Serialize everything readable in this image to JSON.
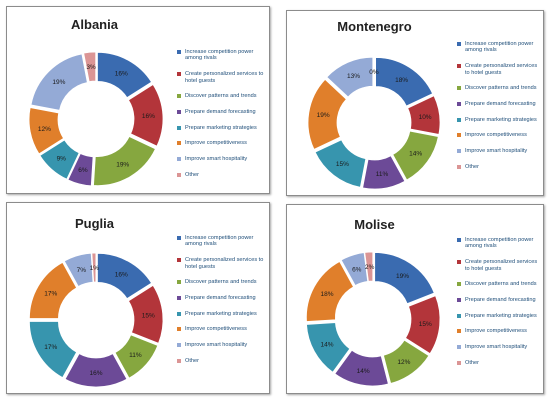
{
  "legend_labels": [
    "Increase competition power among rivals",
    "Create personalized services to hotel guests",
    "Discover patterns and trends",
    "Prepare demand forecasting",
    "Prepare marketing strategies",
    "Improve competitiveness",
    "Improve smart hospitality",
    "Other"
  ],
  "colors": [
    "#3a6bb0",
    "#b3353a",
    "#86a73f",
    "#6c4a97",
    "#3795ae",
    "#e07f2b",
    "#94aad6",
    "#db9595"
  ],
  "chart_data": [
    {
      "type": "pie",
      "variant": "donut",
      "title": "Albania",
      "categories": [
        "Increase competition power among rivals",
        "Create personalized services to hotel guests",
        "Discover patterns and trends",
        "Prepare demand forecasting",
        "Prepare marketing strategies",
        "Improve competitiveness",
        "Improve smart hospitality",
        "Other"
      ],
      "values": [
        16,
        16,
        19,
        6,
        9,
        12,
        19,
        3
      ],
      "labels": [
        "16%",
        "16%",
        "19%",
        "6%",
        "9%",
        "12%",
        "19%",
        "3%"
      ],
      "legend": "right"
    },
    {
      "type": "pie",
      "variant": "donut",
      "title": "Montenegro",
      "categories": [
        "Increase competition power among rivals",
        "Create personalized services to hotel guests",
        "Discover patterns and trends",
        "Prepare demand forecasting",
        "Prepare marketing strategies",
        "Improve competitiveness",
        "Improve smart hospitality",
        "Other"
      ],
      "values": [
        18,
        10,
        14,
        11,
        15,
        19,
        13,
        0
      ],
      "labels": [
        "18%",
        "10%",
        "14%",
        "11%",
        "15%",
        "19%",
        "13%",
        "0%"
      ],
      "legend": "right"
    },
    {
      "type": "pie",
      "variant": "donut",
      "title": "Puglia",
      "categories": [
        "Increase competition power among rivals",
        "Create personalized services to hotel guests",
        "Discover patterns and trends",
        "Prepare demand forecasting",
        "Prepare marketing strategies",
        "Improve competitiveness",
        "Improve smart hospitality",
        "Other"
      ],
      "values": [
        16,
        15,
        11,
        16,
        17,
        17,
        7,
        1
      ],
      "labels": [
        "16%",
        "15%",
        "11%",
        "16%",
        "17%",
        "17%",
        "7%",
        "1%"
      ],
      "legend": "right"
    },
    {
      "type": "pie",
      "variant": "donut",
      "title": "Molise",
      "categories": [
        "Increase competition power among rivals",
        "Create personalized services to hotel guests",
        "Discover patterns and trends",
        "Prepare demand forecasting",
        "Prepare marketing strategies",
        "Improve competitiveness",
        "Improve smart hospitality",
        "Other"
      ],
      "values": [
        19,
        15,
        12,
        14,
        14,
        18,
        6,
        2
      ],
      "labels": [
        "19%",
        "15%",
        "12%",
        "14%",
        "14%",
        "18%",
        "6%",
        "2%"
      ],
      "legend": "right"
    }
  ]
}
